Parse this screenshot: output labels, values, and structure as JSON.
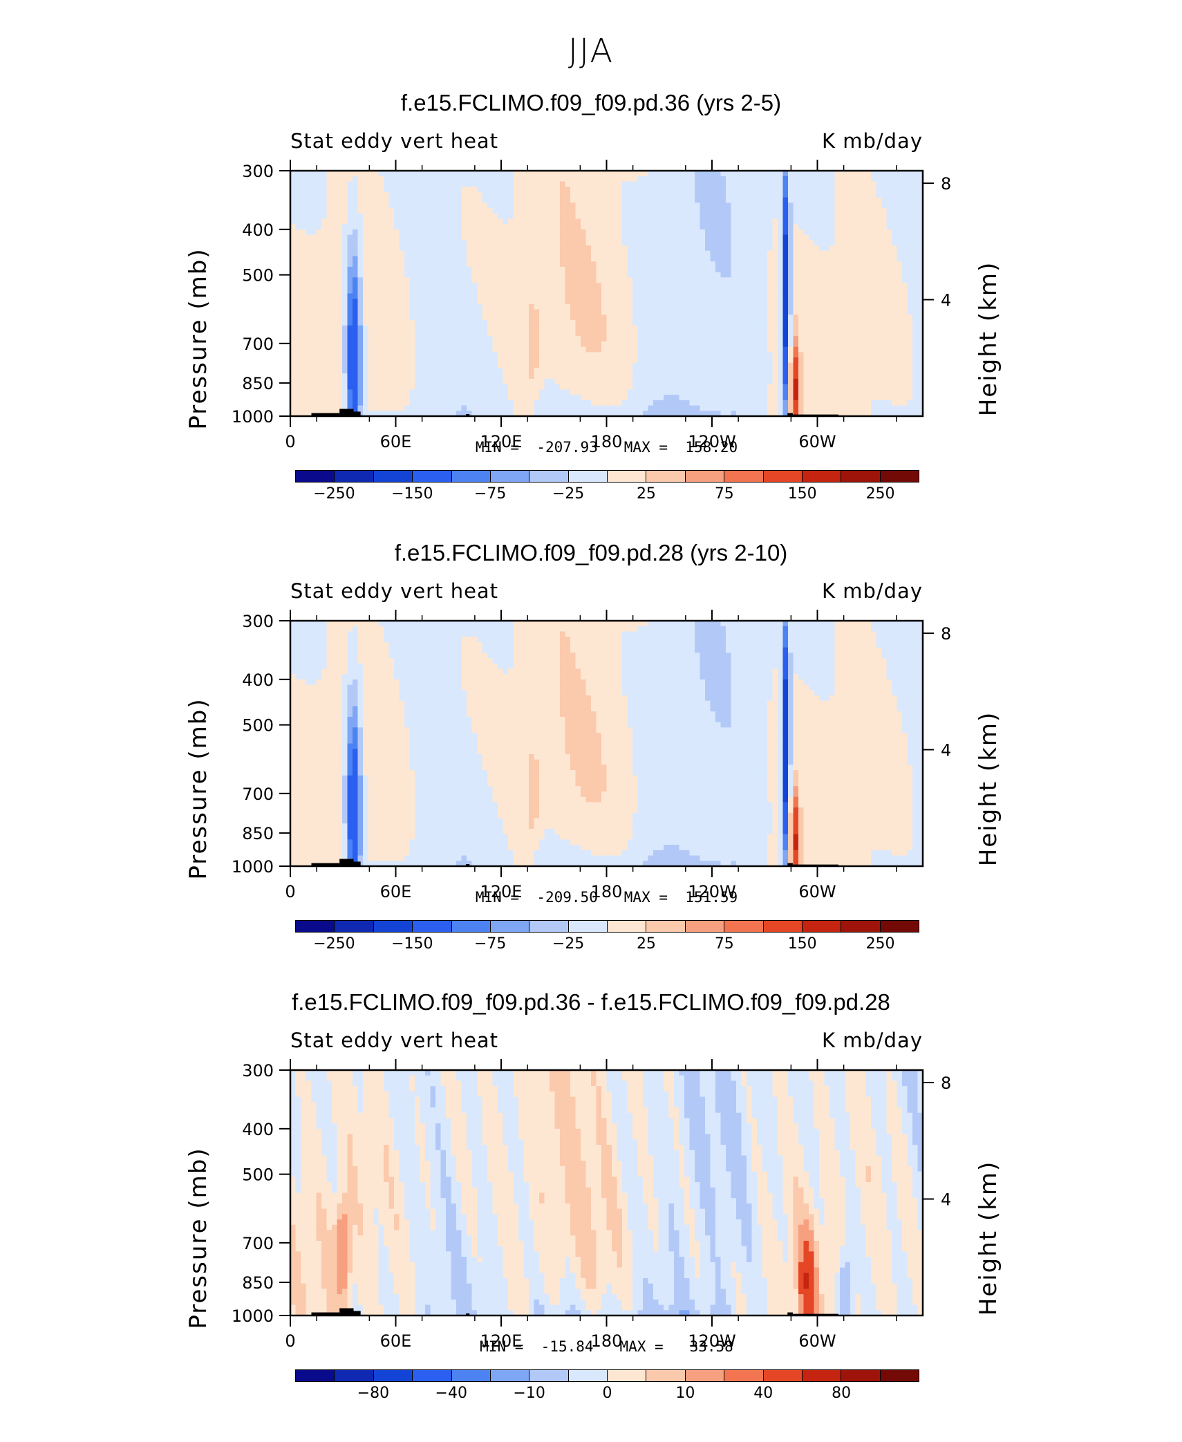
{
  "figure": {
    "title": "JJA"
  },
  "colors": [
    "#0a0a8c",
    "#0f29b3",
    "#1444d6",
    "#2a5ff0",
    "#4d82f2",
    "#7fa6f5",
    "#b2c9f8",
    "#d9e8fd",
    "#fde7d2",
    "#fbc9ac",
    "#f7a07f",
    "#f27450",
    "#e54625",
    "#c52510",
    "#9e140a",
    "#740a05"
  ],
  "chart_data": [
    {
      "type": "contour-cross-section",
      "title": "f.e15.FCLIMO.f09_f09.pd.36 (yrs 2-5)",
      "left_label": "Stat eddy vert heat",
      "right_label": "K mb/day",
      "ylabel": "Pressure (mb)",
      "ylabel_right": "Height (km)",
      "x_ticks": [
        "0",
        "60E",
        "120E",
        "180",
        "120W",
        "60W"
      ],
      "x_range": [
        0,
        360
      ],
      "y_ticks": [
        "300",
        "400",
        "500",
        "700",
        "850",
        "1000"
      ],
      "y_tick_values": [
        300,
        400,
        500,
        700,
        850,
        1000
      ],
      "y_range": [
        300,
        1000
      ],
      "y_right_ticks": [
        "8",
        "4"
      ],
      "y_right_values": [
        8,
        4
      ],
      "min": -207.93,
      "max": 158.2,
      "min_text": "MIN =  -207.93",
      "max_text": "MAX =  158.20",
      "colorbar_ticks": [
        "-250",
        "-150",
        "-75",
        "-25",
        "25",
        "75",
        "150",
        "250"
      ],
      "dominant_field": "weak positive (0 to 25) with weak negative (-25 to 0) regions",
      "features": [
        {
          "lon": 36,
          "p": 750,
          "value": -150
        },
        {
          "lon": 282,
          "p": 550,
          "value": -207.93
        },
        {
          "lon": 287,
          "p": 880,
          "value": 158.2
        },
        {
          "lon": 138,
          "p": 700,
          "value": 40
        }
      ]
    },
    {
      "type": "contour-cross-section",
      "title": "f.e15.FCLIMO.f09_f09.pd.28 (yrs 2-10)",
      "left_label": "Stat eddy vert heat",
      "right_label": "K mb/day",
      "ylabel": "Pressure (mb)",
      "ylabel_right": "Height (km)",
      "x_ticks": [
        "0",
        "60E",
        "120E",
        "180",
        "120W",
        "60W"
      ],
      "x_range": [
        0,
        360
      ],
      "y_ticks": [
        "300",
        "400",
        "500",
        "700",
        "850",
        "1000"
      ],
      "y_tick_values": [
        300,
        400,
        500,
        700,
        850,
        1000
      ],
      "y_range": [
        300,
        1000
      ],
      "y_right_ticks": [
        "8",
        "4"
      ],
      "y_right_values": [
        8,
        4
      ],
      "min": -209.5,
      "max": 151.59,
      "min_text": "MIN =  -209.50",
      "max_text": "MAX =  151.59",
      "colorbar_ticks": [
        "-250",
        "-150",
        "-75",
        "-25",
        "25",
        "75",
        "150",
        "250"
      ],
      "dominant_field": "weak positive (0 to 25) with weak negative (-25 to 0) regions",
      "features": [
        {
          "lon": 36,
          "p": 750,
          "value": -150
        },
        {
          "lon": 282,
          "p": 550,
          "value": -209.5
        },
        {
          "lon": 287,
          "p": 880,
          "value": 151.59
        },
        {
          "lon": 138,
          "p": 700,
          "value": 40
        }
      ]
    },
    {
      "type": "contour-cross-section",
      "title": "f.e15.FCLIMO.f09_f09.pd.36 - f.e15.FCLIMO.f09_f09.pd.28",
      "left_label": "Stat eddy vert heat",
      "right_label": "K mb/day",
      "ylabel": "Pressure (mb)",
      "ylabel_right": "Height (km)",
      "x_ticks": [
        "0",
        "60E",
        "120E",
        "180",
        "120W",
        "60W"
      ],
      "x_range": [
        0,
        360
      ],
      "y_ticks": [
        "300",
        "400",
        "500",
        "700",
        "850",
        "1000"
      ],
      "y_tick_values": [
        300,
        400,
        500,
        700,
        850,
        1000
      ],
      "y_range": [
        300,
        1000
      ],
      "y_right_ticks": [
        "8",
        "4"
      ],
      "y_right_values": [
        8,
        4
      ],
      "min": -15.84,
      "max": 33.58,
      "min_text": "MIN =  -15.84",
      "max_text": "MAX =   33.58",
      "colorbar_ticks": [
        "-80",
        "-40",
        "-10",
        "0",
        "10",
        "40",
        "80"
      ],
      "dominant_field": "small differences (-5 to 5)",
      "features": [
        {
          "lon": 30,
          "p": 720,
          "value": 20
        },
        {
          "lon": 316,
          "p": 900,
          "value": -15.84
        },
        {
          "lon": 294,
          "p": 850,
          "value": 33.58
        }
      ]
    }
  ]
}
